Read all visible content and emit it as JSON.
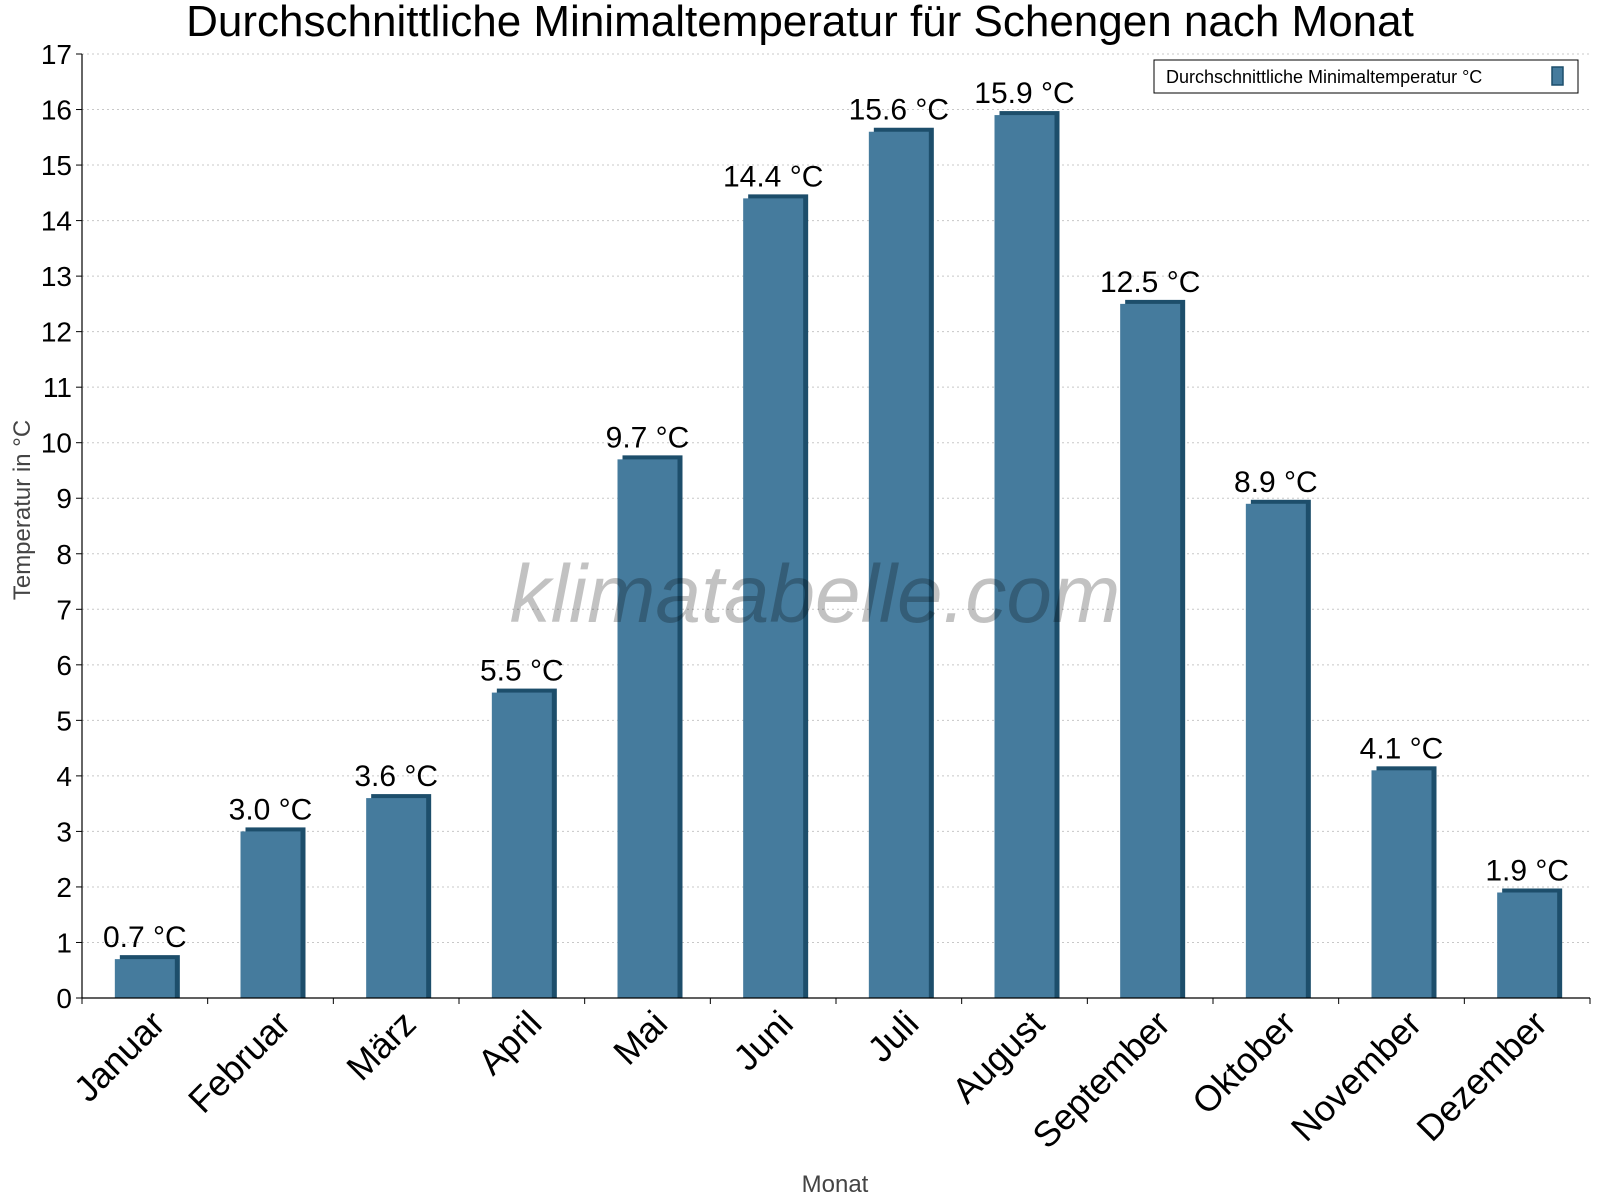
{
  "chart_data": {
    "type": "bar",
    "title": "Durchschnittliche Minimaltemperatur für Schengen nach Monat",
    "xlabel": "Monat",
    "ylabel": "Temperatur in °C",
    "ylim": [
      0,
      17
    ],
    "yticks": [
      0,
      1,
      2,
      3,
      4,
      5,
      6,
      7,
      8,
      9,
      10,
      11,
      12,
      13,
      14,
      15,
      16,
      17
    ],
    "grid": true,
    "legend_position": "top-right",
    "categories": [
      "Januar",
      "Februar",
      "März",
      "April",
      "Mai",
      "Juni",
      "Juli",
      "August",
      "September",
      "Oktober",
      "November",
      "Dezember"
    ],
    "series": [
      {
        "name": "Durchschnittliche Minimaltemperatur °C",
        "color": "#457b9d",
        "values": [
          0.7,
          3.0,
          3.6,
          5.5,
          9.7,
          14.4,
          15.6,
          15.9,
          12.5,
          8.9,
          4.1,
          1.9
        ],
        "labels": [
          "0.7 °C",
          "3.0 °C",
          "3.6 °C",
          "5.5 °C",
          "9.7 °C",
          "14.4 °C",
          "15.6 °C",
          "15.9 °C",
          "12.5 °C",
          "8.9 °C",
          "4.1 °C",
          "1.9 °C"
        ]
      }
    ]
  },
  "watermark": "klimatabelle.com"
}
